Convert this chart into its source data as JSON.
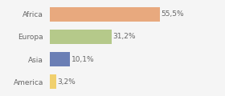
{
  "categories": [
    "Africa",
    "Europa",
    "Asia",
    "America"
  ],
  "values": [
    55.5,
    31.2,
    10.1,
    3.2
  ],
  "labels": [
    "55,5%",
    "31,2%",
    "10,1%",
    "3,2%"
  ],
  "bar_colors": [
    "#e8a97e",
    "#b5c98a",
    "#6b7fb5",
    "#f0d06e"
  ],
  "background_color": "#f5f5f5",
  "xlim": [
    0,
    68
  ],
  "bar_height": 0.65,
  "label_fontsize": 6.5,
  "category_fontsize": 6.5,
  "text_color": "#666666"
}
